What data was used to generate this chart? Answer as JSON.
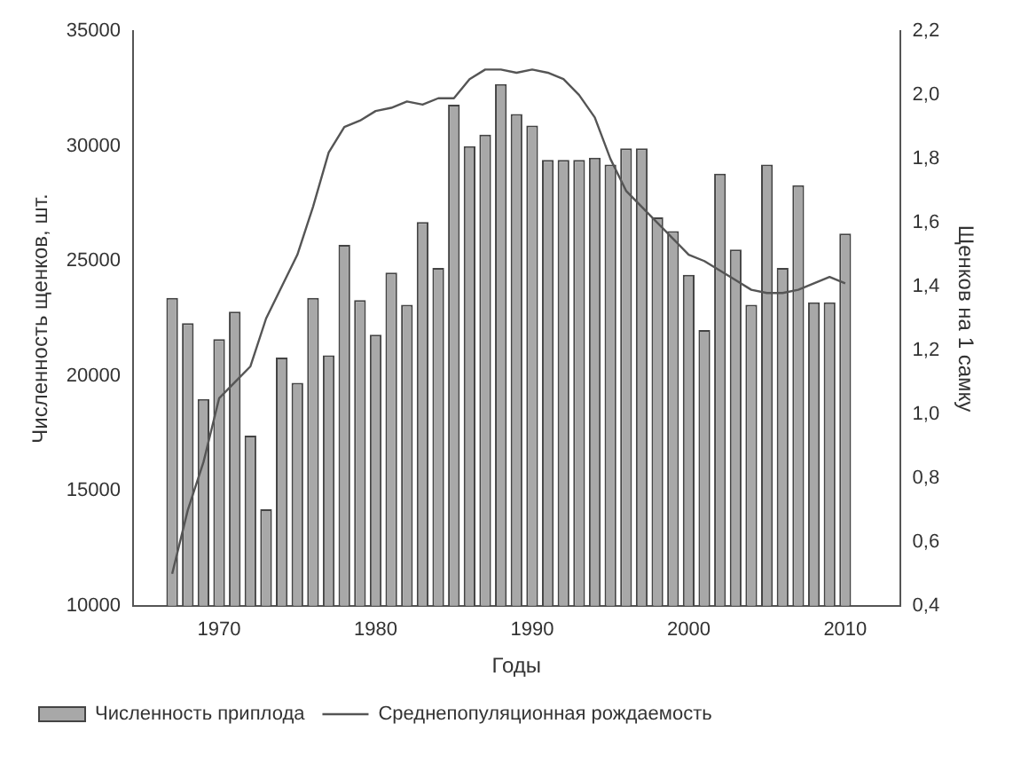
{
  "chart_data": {
    "type": "bar",
    "xlabel": "Годы",
    "ylabel": "Численность щенков, шт.",
    "y2label": "Щенков на 1 самку",
    "x": [
      1967,
      1968,
      1969,
      1970,
      1971,
      1972,
      1973,
      1974,
      1975,
      1976,
      1977,
      1978,
      1979,
      1980,
      1981,
      1982,
      1983,
      1984,
      1985,
      1986,
      1987,
      1988,
      1989,
      1990,
      1991,
      1992,
      1993,
      1994,
      1995,
      1996,
      1997,
      1998,
      1999,
      2000,
      2001,
      2002,
      2003,
      2004,
      2005,
      2006,
      2007,
      2008,
      2009,
      2010
    ],
    "series": [
      {
        "name": "Численность приплода",
        "color": "#a8a8a8",
        "values": [
          23400,
          22300,
          19000,
          21600,
          22800,
          17400,
          14200,
          20800,
          19700,
          23400,
          20900,
          25700,
          23300,
          21800,
          24500,
          23100,
          26700,
          24700,
          31800,
          30000,
          30500,
          32700,
          31400,
          30900,
          29400,
          29400,
          29400,
          29500,
          29200,
          29900,
          29900,
          26900,
          26300,
          24400,
          22000,
          28800,
          25500,
          23100,
          29200,
          24700,
          28300,
          23200,
          23200,
          26200
        ]
      },
      {
        "name": "Среднепопуляционная рождаемость",
        "type": "line",
        "axis": "y2",
        "color": "#555555",
        "values": [
          0.5,
          0.7,
          0.85,
          1.05,
          1.1,
          1.15,
          1.3,
          1.4,
          1.5,
          1.65,
          1.82,
          1.9,
          1.92,
          1.95,
          1.96,
          1.98,
          1.97,
          1.99,
          1.99,
          2.05,
          2.08,
          2.08,
          2.07,
          2.08,
          2.07,
          2.05,
          2.0,
          1.93,
          1.8,
          1.7,
          1.65,
          1.6,
          1.55,
          1.5,
          1.48,
          1.45,
          1.42,
          1.39,
          1.38,
          1.38,
          1.39,
          1.41,
          1.43,
          1.41
        ]
      }
    ],
    "xlim": [
      1964.5,
      2013.5
    ],
    "xticks": [
      1970,
      1980,
      1990,
      2000,
      2010
    ],
    "ylim": [
      10000,
      35000
    ],
    "yticks": [
      10000,
      15000,
      20000,
      25000,
      30000,
      35000
    ],
    "y2lim": [
      0.4,
      2.2
    ],
    "y2ticks": [
      {
        "value": 0.4,
        "label": "0,4"
      },
      {
        "value": 0.6,
        "label": "0,6"
      },
      {
        "value": 0.8,
        "label": "0,8"
      },
      {
        "value": 1.0,
        "label": "1,0"
      },
      {
        "value": 1.2,
        "label": "1,2"
      },
      {
        "value": 1.4,
        "label": "1,4"
      },
      {
        "value": 1.6,
        "label": "1,6"
      },
      {
        "value": 1.8,
        "label": "1,8"
      },
      {
        "value": 2.0,
        "label": "2,0"
      },
      {
        "value": 2.2,
        "label": "2,2"
      }
    ],
    "grid": false,
    "legend": "bottom",
    "marker": "none",
    "line_style": "solid"
  }
}
